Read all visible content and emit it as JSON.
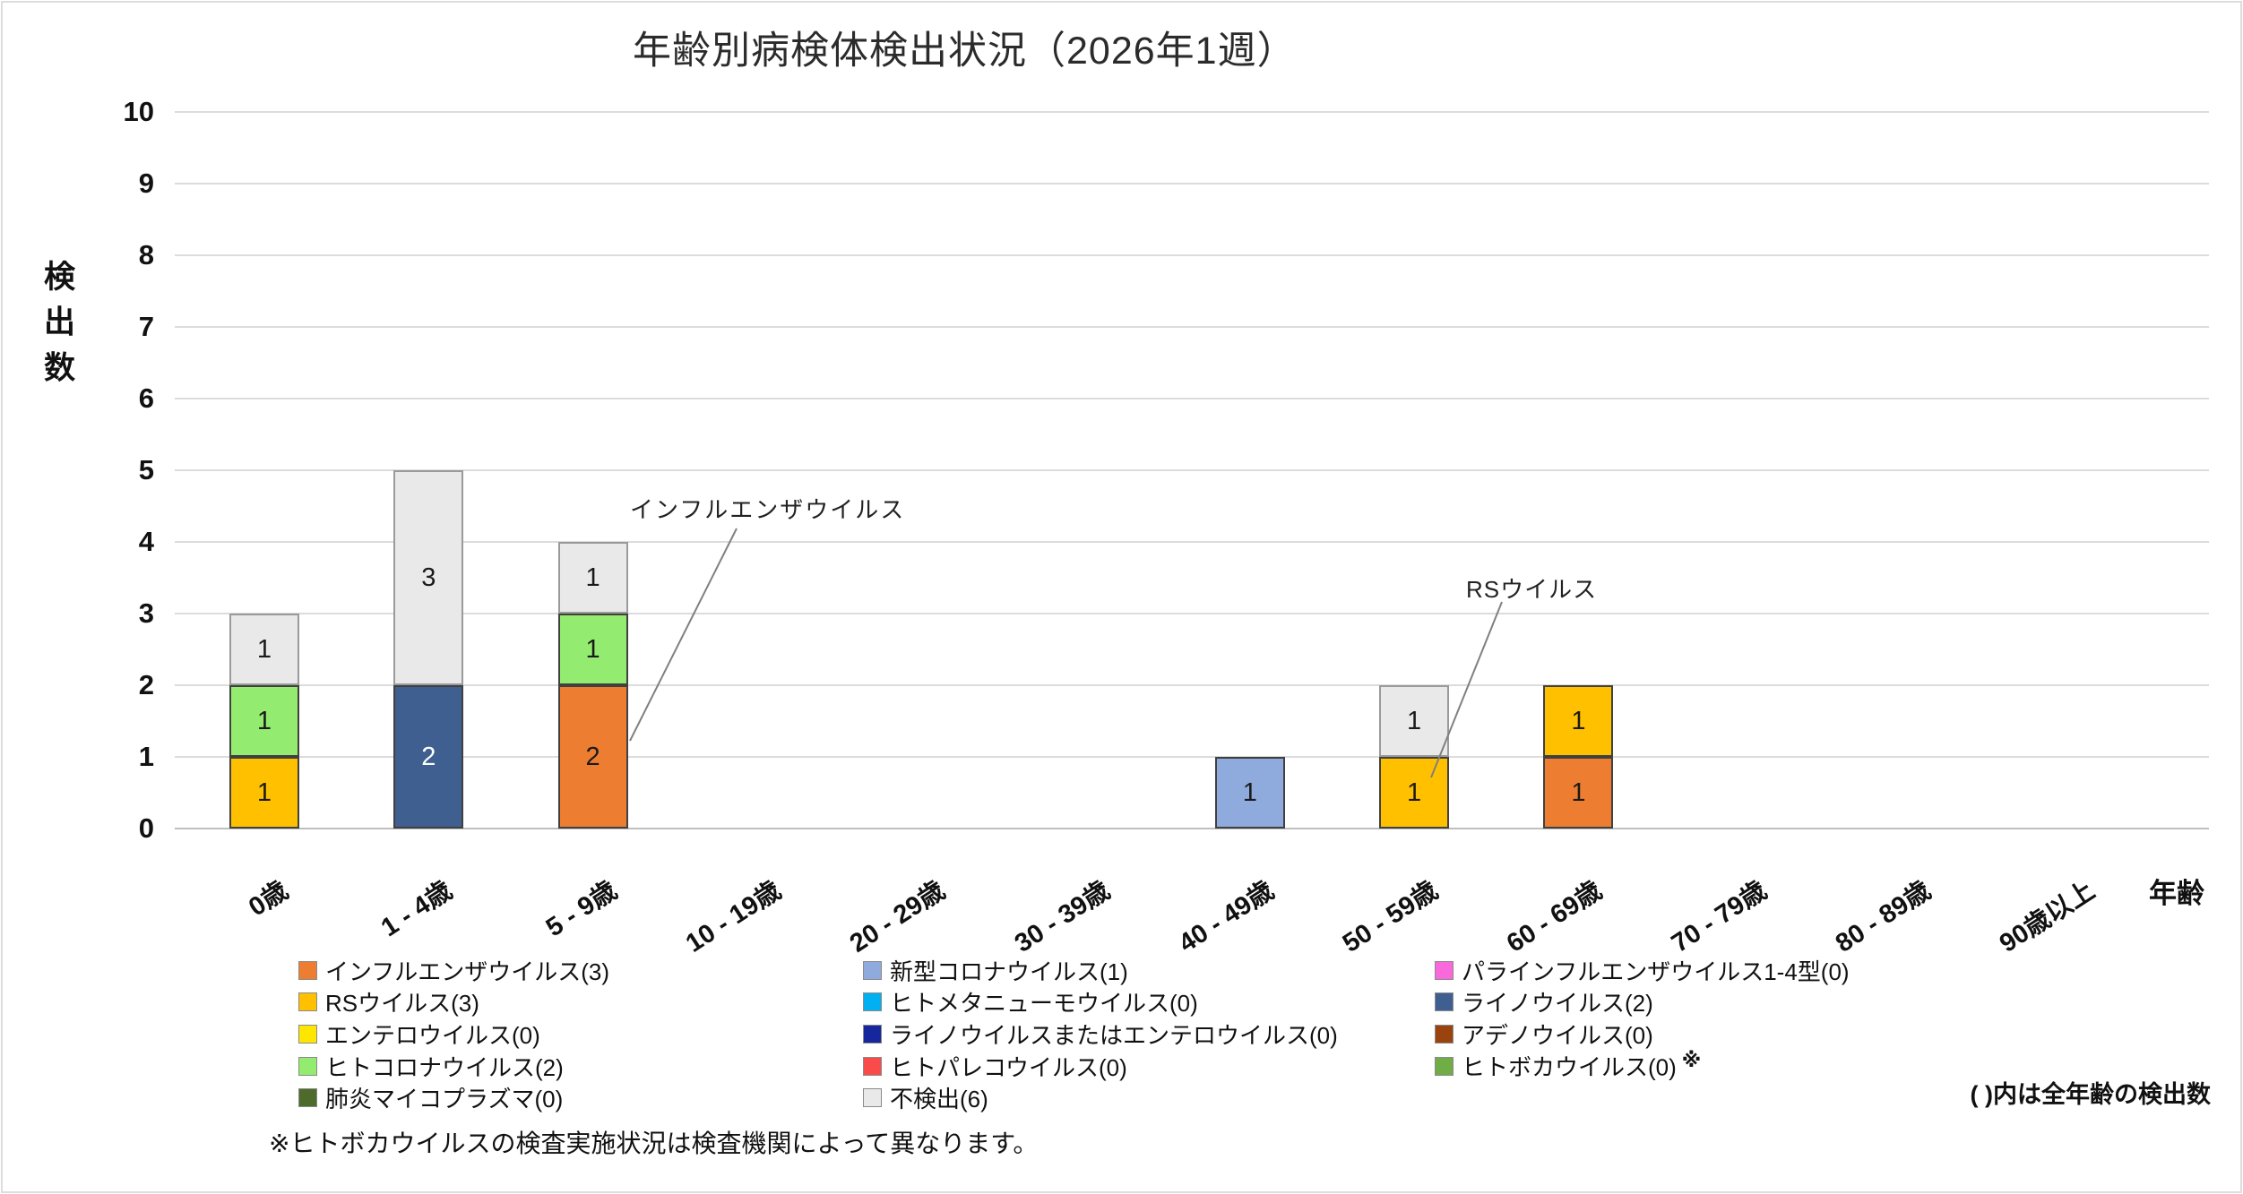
{
  "annotations": {
    "influenza": "インフルエンザウイルス",
    "rs": "RSウイルス"
  },
  "notes": {
    "bocavirus": "※ヒトボカウイルスの検査実施状況は検査機関によって異なります。",
    "parentheses": "( )内は全年齢の検出数"
  },
  "chart_data": {
    "type": "bar",
    "stacked": true,
    "title": "年齢別病検体検出状況（2026年1週）",
    "xlabel": "年齢",
    "ylabel": "検出数",
    "ylim": [
      0,
      10
    ],
    "yticks": [
      0,
      1,
      2,
      3,
      4,
      5,
      6,
      7,
      8,
      9,
      10
    ],
    "grid": true,
    "legend_position": "bottom",
    "categories": [
      "0歳",
      "1 - 4歳",
      "5 - 9歳",
      "10 - 19歳",
      "20 - 29歳",
      "30 - 39歳",
      "40 - 49歳",
      "50 - 59歳",
      "60 - 69歳",
      "70 - 79歳",
      "80 - 89歳",
      "90歳以上"
    ],
    "series": [
      {
        "name": "インフルエンザウイルス",
        "total": 3,
        "color": "#ED7D31",
        "values": [
          0,
          0,
          2,
          0,
          0,
          0,
          0,
          0,
          1,
          0,
          0,
          0
        ]
      },
      {
        "name": "RSウイルス",
        "total": 3,
        "color": "#FFC000",
        "values": [
          1,
          0,
          0,
          0,
          0,
          0,
          0,
          1,
          1,
          0,
          0,
          0
        ]
      },
      {
        "name": "エンテロウイルス",
        "total": 0,
        "color": "#FFE600",
        "values": [
          0,
          0,
          0,
          0,
          0,
          0,
          0,
          0,
          0,
          0,
          0,
          0
        ]
      },
      {
        "name": "ヒトコロナウイルス",
        "total": 2,
        "color": "#93EC6F",
        "values": [
          1,
          0,
          1,
          0,
          0,
          0,
          0,
          0,
          0,
          0,
          0,
          0
        ]
      },
      {
        "name": "肺炎マイコプラズマ",
        "total": 0,
        "color": "#4D6B2B",
        "values": [
          0,
          0,
          0,
          0,
          0,
          0,
          0,
          0,
          0,
          0,
          0,
          0
        ]
      },
      {
        "name": "新型コロナウイルス",
        "total": 1,
        "color": "#8FAADC",
        "values": [
          0,
          0,
          0,
          0,
          0,
          0,
          1,
          0,
          0,
          0,
          0,
          0
        ]
      },
      {
        "name": "ヒトメタニューモウイルス",
        "total": 0,
        "color": "#00B0F0",
        "values": [
          0,
          0,
          0,
          0,
          0,
          0,
          0,
          0,
          0,
          0,
          0,
          0
        ]
      },
      {
        "name": "ライノウイルスまたはエンテロウイルス",
        "total": 0,
        "color": "#16279E",
        "values": [
          0,
          0,
          0,
          0,
          0,
          0,
          0,
          0,
          0,
          0,
          0,
          0
        ]
      },
      {
        "name": "ヒトパレコウイルス",
        "total": 0,
        "color": "#FA4B4B",
        "values": [
          0,
          0,
          0,
          0,
          0,
          0,
          0,
          0,
          0,
          0,
          0,
          0
        ]
      },
      {
        "name": "パラインフルエンザウイルス1-4型",
        "total": 0,
        "color": "#F969DB",
        "values": [
          0,
          0,
          0,
          0,
          0,
          0,
          0,
          0,
          0,
          0,
          0,
          0
        ]
      },
      {
        "name": "ライノウイルス",
        "total": 2,
        "color": "#3F5F91",
        "values": [
          0,
          2,
          0,
          0,
          0,
          0,
          0,
          0,
          0,
          0,
          0,
          0
        ]
      },
      {
        "name": "アデノウイルス",
        "total": 0,
        "color": "#9A430E",
        "values": [
          0,
          0,
          0,
          0,
          0,
          0,
          0,
          0,
          0,
          0,
          0,
          0
        ]
      },
      {
        "name": "ヒトボカウイルス",
        "total": 0,
        "color": "#70AD47",
        "legend_suffix": "※",
        "values": [
          0,
          0,
          0,
          0,
          0,
          0,
          0,
          0,
          0,
          0,
          0,
          0
        ]
      },
      {
        "name": "不検出",
        "total": 6,
        "color": "#E9E9E9",
        "values": [
          1,
          3,
          1,
          0,
          0,
          0,
          0,
          1,
          0,
          0,
          0,
          0
        ]
      }
    ],
    "legend_columns": [
      [
        0,
        1,
        2,
        3,
        4
      ],
      [
        5,
        6,
        7,
        8,
        13
      ],
      [
        9,
        10,
        11,
        12
      ]
    ]
  }
}
